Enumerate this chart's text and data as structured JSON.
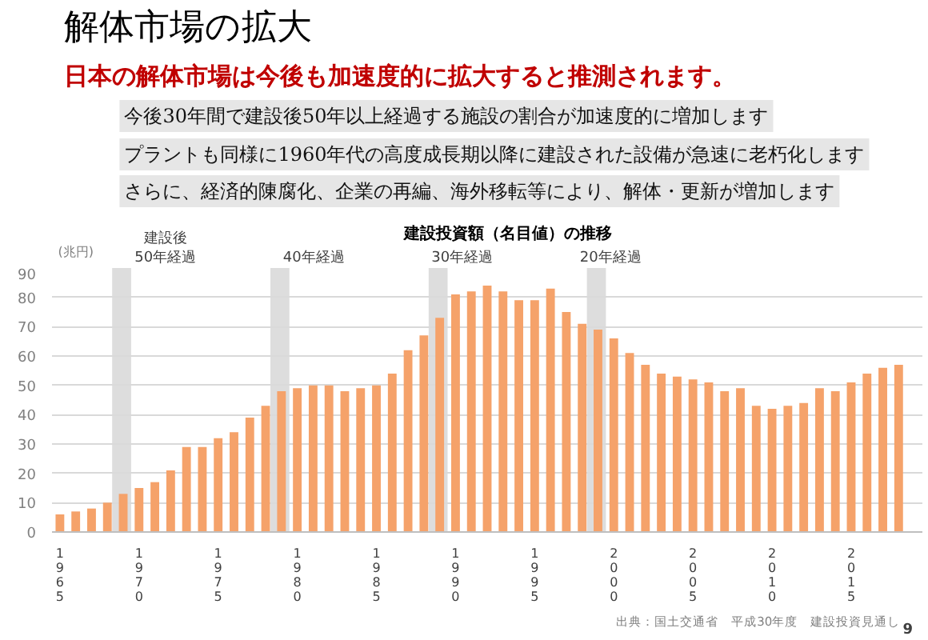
{
  "chart_data": {
    "type": "bar",
    "title": "解体市場の拡大",
    "subtitle": "日本の解体市場は今後も加速度的に拡大すると推測されます。",
    "ylabel": "(兆円)",
    "x": [
      1965,
      1966,
      1967,
      1968,
      1969,
      1970,
      1971,
      1972,
      1973,
      1974,
      1975,
      1976,
      1977,
      1978,
      1979,
      1980,
      1981,
      1982,
      1983,
      1984,
      1985,
      1986,
      1987,
      1988,
      1989,
      1990,
      1991,
      1992,
      1993,
      1994,
      1995,
      1996,
      1997,
      1998,
      1999,
      2000,
      2001,
      2002,
      2003,
      2004,
      2005,
      2006,
      2007,
      2008,
      2009,
      2010,
      2011,
      2012,
      2013,
      2014,
      2015,
      2016,
      2017,
      2018
    ],
    "values": [
      6,
      7,
      8,
      10,
      13,
      15,
      17,
      21,
      29,
      29,
      32,
      34,
      39,
      43,
      48,
      49,
      50,
      50,
      48,
      49,
      50,
      54,
      62,
      67,
      73,
      81,
      82,
      84,
      82,
      79,
      79,
      83,
      75,
      71,
      69,
      66,
      61,
      57,
      54,
      53,
      52,
      51,
      48,
      49,
      43,
      42,
      43,
      44,
      49,
      48,
      51,
      54,
      56,
      57
    ],
    "color": "#f5a26a",
    "xlim": [
      1964.5,
      2019.5
    ],
    "ylim": [
      0,
      90
    ],
    "yticks": [
      0,
      10,
      20,
      30,
      40,
      50,
      60,
      70,
      80,
      90
    ],
    "xticks": [
      1965,
      1970,
      1975,
      1980,
      1985,
      1990,
      1995,
      2000,
      2005,
      2010,
      2015
    ],
    "grid": "y",
    "bands": [
      {
        "axis": "x",
        "from": 1968.3,
        "to": 1969.5,
        "label": "建設後\n50年経過",
        "color": "#d9d9d9"
      },
      {
        "axis": "x",
        "from": 1978.3,
        "to": 1979.5,
        "label": "40年経過",
        "color": "#d9d9d9"
      },
      {
        "axis": "x",
        "from": 1988.3,
        "to": 1989.5,
        "label": "30年経過",
        "color": "#d9d9d9"
      },
      {
        "axis": "x",
        "from": 1998.3,
        "to": 1999.5,
        "label": "20年経過",
        "color": "#d9d9d9"
      }
    ],
    "annotations": [
      "今後30年間で建設後50年以上経過する施設の割合が加速度的に増加します",
      "プラントも同様に1960年代の高度成長期以降に建設された設備が急速に老朽化します",
      "さらに、経済的陳腐化、企業の再編、海外移転等により、解体・更新が増加します",
      "建設投資額（名目値）の推移",
      "出典：国土交通省　平成30年度　建設投資見通し",
      "9"
    ]
  }
}
